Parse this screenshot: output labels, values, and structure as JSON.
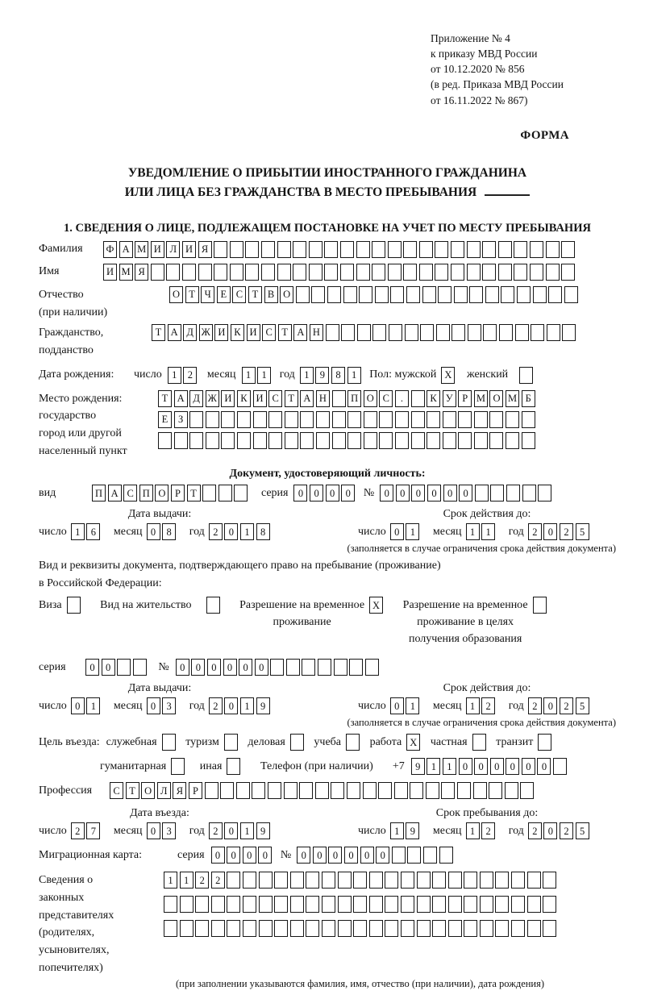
{
  "ref": {
    "lines": [
      "Приложение № 4",
      "к приказу МВД России",
      "от 10.12.2020 № 856",
      "(в ред. Приказа МВД России",
      "от 16.11.2022 № 867)"
    ],
    "forma": "ФОРМА"
  },
  "title": {
    "line1": "УВЕДОМЛЕНИЕ О ПРИБЫТИИ ИНОСТРАННОГО ГРАЖДАНИНА",
    "line2": "ИЛИ ЛИЦА БЕЗ ГРАЖДАНСТВА В МЕСТО ПРЕБЫВАНИЯ",
    "section1": "1. СВЕДЕНИЯ О ЛИЦЕ, ПОДЛЕЖАЩЕМ ПОСТАНОВКЕ НА УЧЕТ ПО МЕСТУ ПРЕБЫВАНИЯ"
  },
  "dlbl": {
    "day": "число",
    "month": "месяц",
    "year": "год"
  },
  "surname": {
    "label": "Фамилия",
    "box": {
      "value": "ФАМИЛИЯ",
      "cells": 30
    }
  },
  "firstname": {
    "label": "Имя",
    "box": {
      "value": "ИМЯ",
      "cells": 30
    }
  },
  "patronymic": {
    "label1": "Отчество",
    "label2": "(при наличии)",
    "box": {
      "value": "ОТЧЕСТВО",
      "cells": 26
    }
  },
  "citizenship": {
    "label1": "Гражданство,",
    "label2": "подданство",
    "box": {
      "value": "ТАДЖИКИСТАН",
      "cells": 27
    }
  },
  "birth": {
    "label": "Дата рождения:",
    "day": {
      "value": "12",
      "cells": 2
    },
    "month": {
      "value": "11",
      "cells": 2
    },
    "year": {
      "value": "1981",
      "cells": 4
    },
    "sex_label": "Пол: мужской",
    "male": {
      "value": "X",
      "cells": 1
    },
    "female_label": "женский",
    "female": {
      "value": "",
      "cells": 1
    }
  },
  "birthplace": {
    "label1": "Место рождения:",
    "label2": "государство",
    "label3": "город или другой",
    "label4": "населенный пункт",
    "row1": {
      "value": "ТАДЖИКИСТАН ПОС. КУРМОМБ",
      "cells": 24
    },
    "row2": {
      "value": "ЕЗ",
      "cells": 24
    },
    "row3": {
      "value": "",
      "cells": 24
    }
  },
  "identity_doc": {
    "head": "Документ, удостоверяющий личность:",
    "kind_label": "вид",
    "kind": {
      "value": "ПАСПОРТ",
      "cells": 10
    },
    "series_label": "серия",
    "series": {
      "value": "0000",
      "cells": 4
    },
    "number_label": "№",
    "number": {
      "value": "000000",
      "cells": 11
    },
    "issue_head": "Дата выдачи:",
    "issue_day": {
      "value": "16",
      "cells": 2
    },
    "issue_month": {
      "value": "08",
      "cells": 2
    },
    "issue_year": {
      "value": "2018",
      "cells": 4
    },
    "valid_head": "Срок действия до:",
    "valid_day": {
      "value": "01",
      "cells": 2
    },
    "valid_month": {
      "value": "11",
      "cells": 2
    },
    "valid_year": {
      "value": "2025",
      "cells": 4
    },
    "note": "(заполняется в случае ограничения срока действия документа)"
  },
  "residence_doc": {
    "intro1": "Вид и реквизиты документа, подтверждающего право на пребывание (проживание)",
    "intro2": "в Российской Федерации:",
    "visa_label": "Виза",
    "visa": {
      "value": "",
      "cells": 1
    },
    "permit_label": "Вид на жительство",
    "permit": {
      "value": "",
      "cells": 1
    },
    "rvp_label1": "Разрешение на временное",
    "rvp_label2": "проживание",
    "rvp": {
      "value": "X",
      "cells": 1
    },
    "rvp_edu_label1": "Разрешение на временное",
    "rvp_edu_label2": "проживание в целях",
    "rvp_edu_label3": "получения образования",
    "rvp_edu": {
      "value": "",
      "cells": 1
    },
    "series_label": "серия",
    "series": {
      "value": "00",
      "cells": 4
    },
    "number_label": "№",
    "number": {
      "value": "000000",
      "cells": 13
    },
    "issue_head": "Дата выдачи:",
    "issue_day": {
      "value": "01",
      "cells": 2
    },
    "issue_month": {
      "value": "03",
      "cells": 2
    },
    "issue_year": {
      "value": "2019",
      "cells": 4
    },
    "valid_head": "Срок действия до:",
    "valid_day": {
      "value": "01",
      "cells": 2
    },
    "valid_month": {
      "value": "12",
      "cells": 2
    },
    "valid_year": {
      "value": "2025",
      "cells": 4
    },
    "note": "(заполняется в случае ограничения срока действия документа)"
  },
  "purpose": {
    "label": "Цель въезда:",
    "items": [
      {
        "label": "служебная",
        "box": {
          "value": "",
          "cells": 1
        }
      },
      {
        "label": "туризм",
        "box": {
          "value": "",
          "cells": 1
        }
      },
      {
        "label": "деловая",
        "box": {
          "value": "",
          "cells": 1
        }
      },
      {
        "label": "учеба",
        "box": {
          "value": "",
          "cells": 1
        }
      },
      {
        "label": "работа",
        "box": {
          "value": "X",
          "cells": 1
        }
      },
      {
        "label": "частная",
        "box": {
          "value": "",
          "cells": 1
        }
      },
      {
        "label": "транзит",
        "box": {
          "value": "",
          "cells": 1
        }
      }
    ],
    "item_humanitarian": {
      "label": "гуманитарная",
      "box": {
        "value": "",
        "cells": 1
      }
    },
    "item_other": {
      "label": "иная",
      "box": {
        "value": "",
        "cells": 1
      }
    },
    "phone_label": "Телефон (при наличии)",
    "phone_prefix": "+7",
    "phone": {
      "value": "911000000",
      "cells": 10
    }
  },
  "profession": {
    "label": "Профессия",
    "box": {
      "value": "СТОЛЯР",
      "cells": 27
    }
  },
  "entry": {
    "issue_head": "Дата въезда:",
    "issue_day": {
      "value": "27",
      "cells": 2
    },
    "issue_month": {
      "value": "03",
      "cells": 2
    },
    "issue_year": {
      "value": "2019",
      "cells": 4
    },
    "valid_head": "Срок пребывания до:",
    "valid_day": {
      "value": "19",
      "cells": 2
    },
    "valid_month": {
      "value": "12",
      "cells": 2
    },
    "valid_year": {
      "value": "2025",
      "cells": 4
    }
  },
  "migration_card": {
    "label": "Миграционная карта:",
    "series_label": "серия",
    "series": {
      "value": "0000",
      "cells": 4
    },
    "number_label": "№",
    "number": {
      "value": "000000",
      "cells": 10
    }
  },
  "representatives": {
    "label_lines": [
      "Сведения о",
      "законных",
      "представителях",
      "(родителях,",
      "усыновителях,",
      "попечителях)"
    ],
    "row1": {
      "value": "1122",
      "cells": 25
    },
    "row2": {
      "value": "",
      "cells": 25
    },
    "row3": {
      "value": "",
      "cells": 25
    },
    "note": "(при заполнении указываются фамилия, имя, отчество (при наличии), дата рождения)"
  }
}
